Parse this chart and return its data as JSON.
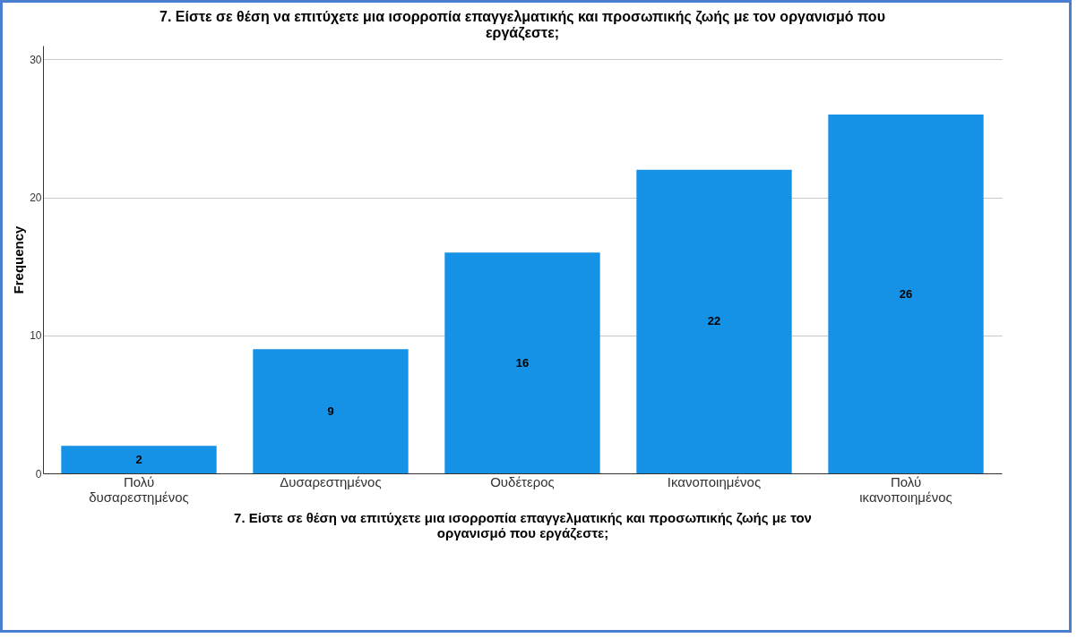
{
  "chart_data": {
    "type": "bar",
    "title": "7. Είστε σε θέση να επιτύχετε μια ισορροπία επαγγελματικής και προσωπικής ζωής με τον οργανισμό που εργάζεστε;",
    "xlabel": "7. Είστε σε θέση να επιτύχετε μια ισορροπία επαγγελματικής και προσωπικής ζωής με τον οργανισμό που εργάζεστε;",
    "ylabel": "Frequency",
    "categories": [
      "Πολύ δυσαρεστημένος",
      "Δυσαρεστημένος",
      "Ουδέτερος",
      "Ικανοποιημένος",
      "Πολύ ικανοποιημένος"
    ],
    "values": [
      2,
      9,
      16,
      22,
      26
    ],
    "color": "#1591e6",
    "ylim": [
      0,
      31
    ],
    "yticks": [
      0,
      10,
      20,
      30
    ],
    "grid": "y",
    "data_labels": true
  }
}
